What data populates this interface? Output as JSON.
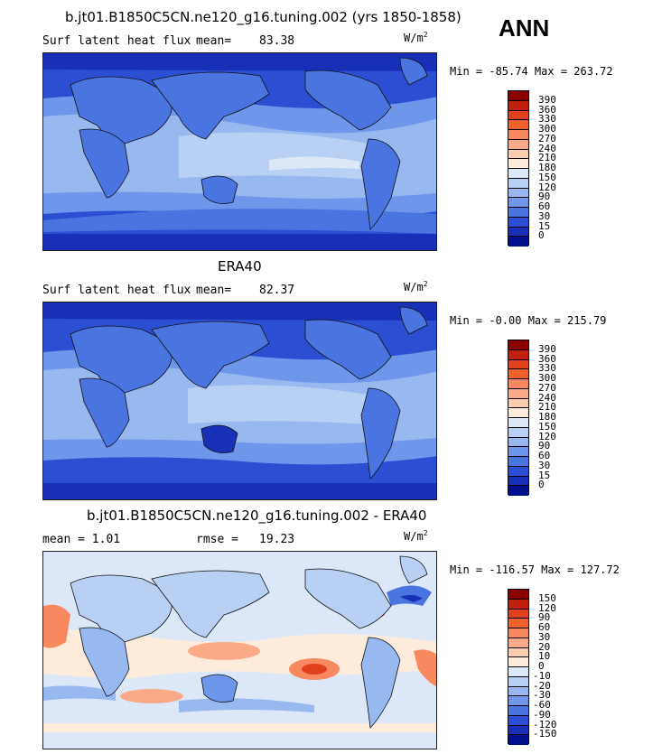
{
  "season": "ANN",
  "units_base": "W/m",
  "units_exp": "2",
  "panels": [
    {
      "title": "b.jt01.B1850C5CN.ne120_g16.tuning.002 (yrs 1850-1858)",
      "variable": "Surf latent heat flux",
      "stat_label": "mean=",
      "stat_value": "83.38",
      "minmax": "Min = -85.74 Max = 263.72",
      "colorbar_labels": [
        "390",
        "360",
        "330",
        "300",
        "270",
        "240",
        "210",
        "180",
        "150",
        "120",
        "90",
        "60",
        "30",
        "15",
        "0"
      ],
      "colorbar_colors": [
        "#8b0000",
        "#c1200c",
        "#e0401c",
        "#f0602c",
        "#f88860",
        "#fbaa88",
        "#fdcdb0",
        "#fdebdc",
        "#dce8f8",
        "#b8d0f4",
        "#98b8f0",
        "#6e96ea",
        "#4a74e0",
        "#2c4ed2",
        "#1830b8",
        "#00108c"
      ]
    },
    {
      "title": "ERA40",
      "variable": "Surf latent heat flux",
      "stat_label": "mean=",
      "stat_value": "82.37",
      "minmax": "Min =  -0.00 Max = 215.79",
      "colorbar_labels": [
        "390",
        "360",
        "330",
        "300",
        "270",
        "240",
        "210",
        "180",
        "150",
        "120",
        "90",
        "60",
        "30",
        "15",
        "0"
      ],
      "colorbar_colors": [
        "#8b0000",
        "#c1200c",
        "#e0401c",
        "#f0602c",
        "#f88860",
        "#fbaa88",
        "#fdcdb0",
        "#fdebdc",
        "#dce8f8",
        "#b8d0f4",
        "#98b8f0",
        "#6e96ea",
        "#4a74e0",
        "#2c4ed2",
        "#1830b8",
        "#00108c"
      ]
    },
    {
      "title": "b.jt01.B1850C5CN.ne120_g16.tuning.002 - ERA40",
      "variable": "mean =    1.01",
      "stat_label": "rmse =",
      "stat_value": "19.23",
      "minmax": "Min = -116.57 Max = 127.72",
      "colorbar_labels": [
        "150",
        "120",
        "90",
        "60",
        "30",
        "20",
        "10",
        "0",
        "-10",
        "-20",
        "-30",
        "-60",
        "-90",
        "-120",
        "-150"
      ],
      "colorbar_colors": [
        "#8b0000",
        "#c1200c",
        "#e0401c",
        "#f0602c",
        "#f88860",
        "#fbaa88",
        "#fdcdb0",
        "#fdebdc",
        "#dce8f8",
        "#b8d0f4",
        "#98b8f0",
        "#6e96ea",
        "#4a74e0",
        "#2c4ed2",
        "#1830b8",
        "#00108c"
      ]
    }
  ]
}
